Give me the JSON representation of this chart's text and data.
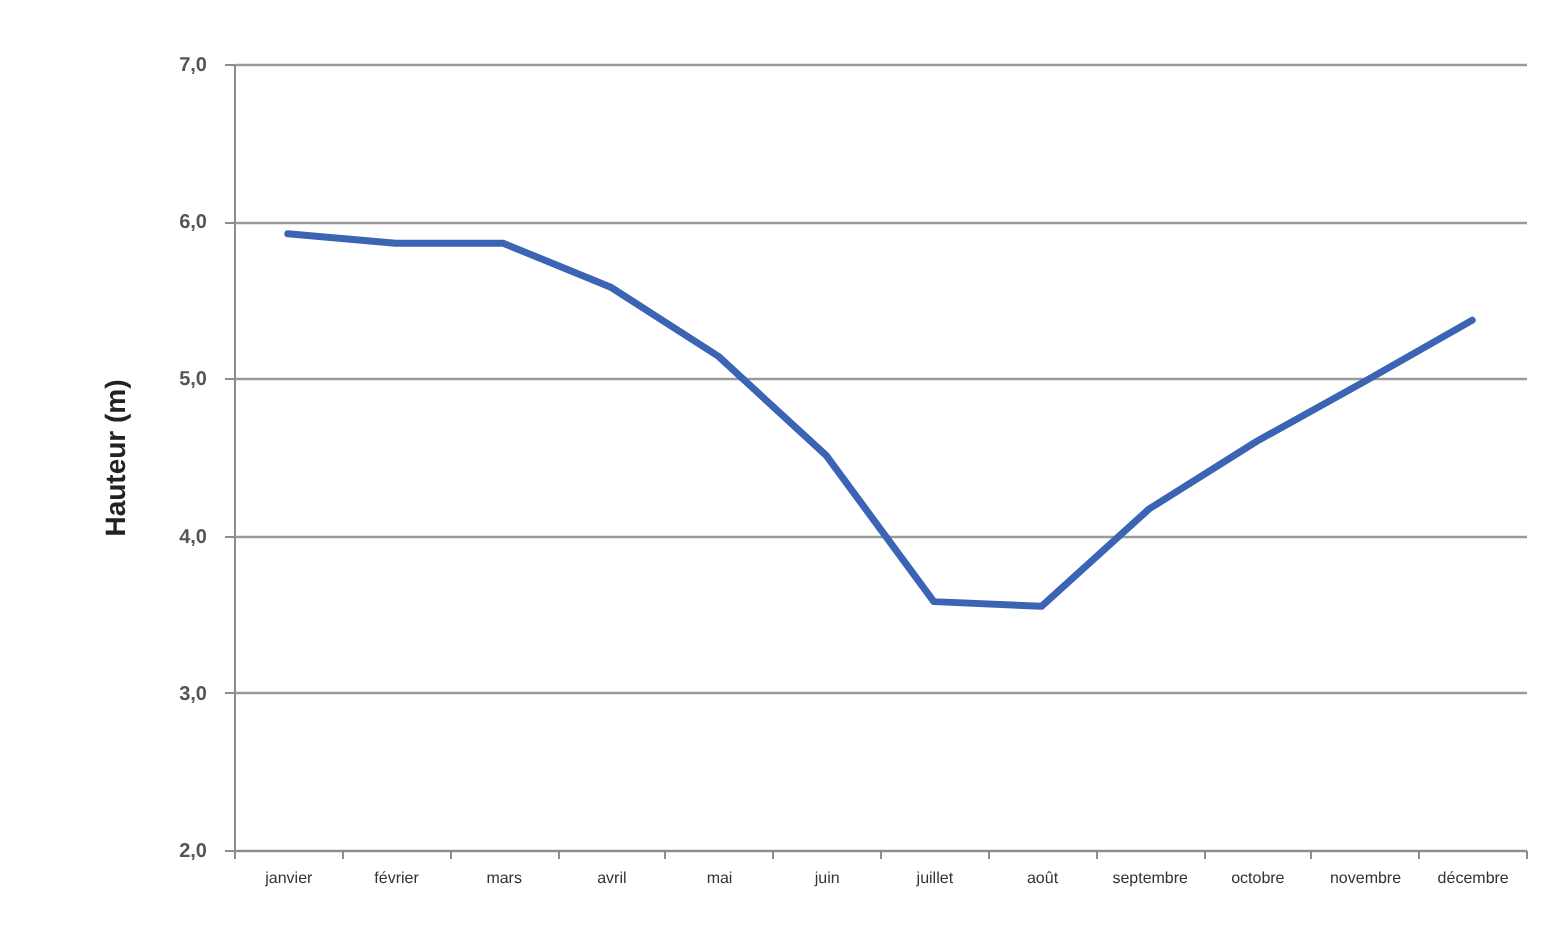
{
  "chart_data": {
    "type": "line",
    "ylabel": "Hauteur (m)",
    "categories": [
      "janvier",
      "février",
      "mars",
      "avril",
      "mai",
      "juin",
      "juillet",
      "août",
      "septembre",
      "octobre",
      "novembre",
      "décembre"
    ],
    "series": [
      {
        "color": "#3c64b4",
        "values": [
          5.92,
          5.86,
          5.86,
          5.58,
          5.14,
          4.51,
          3.58,
          3.55,
          4.17,
          4.6,
          4.98,
          5.37
        ]
      }
    ],
    "ylim": [
      2,
      7
    ],
    "yticks": [
      {
        "value": 2,
        "label": "2,0"
      },
      {
        "value": 3,
        "label": "3,0"
      },
      {
        "value": 4,
        "label": "4,0"
      },
      {
        "value": 5,
        "label": "5,0"
      },
      {
        "value": 6,
        "label": "6,0"
      },
      {
        "value": 7,
        "label": "7,0"
      }
    ],
    "grid": "y",
    "marker": "none",
    "line_style": "solid"
  }
}
